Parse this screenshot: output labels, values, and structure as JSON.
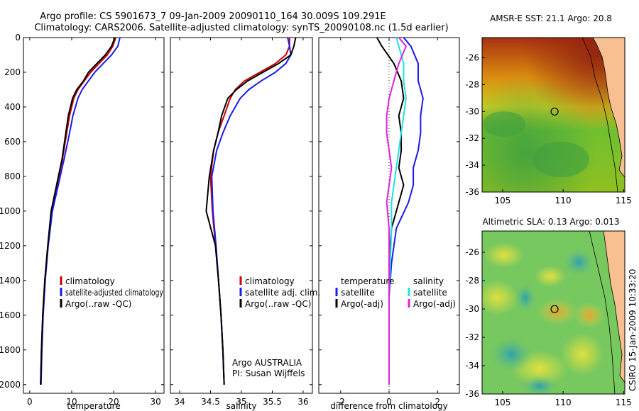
{
  "header": {
    "title_line1": "Argo profile: CS 5901673_7 09-Jan-2009 20090110_164 30.009S 109.291E",
    "title_line2": "Climatology: CARS2006. Satellite-adjusted climatology: synTS_20090108.nc (1.5d earlier)"
  },
  "colors": {
    "climatology": "#cc0000",
    "satellite": "#1a1aee",
    "argo": "#000000",
    "satellite_salinity": "#22e0e0",
    "argo_adj": "#dd22dd"
  },
  "chart_data": [
    {
      "type": "line",
      "id": "temperature",
      "xlabel": "temperature",
      "ylim": [
        2050,
        0
      ],
      "xlim": [
        -1.5,
        32
      ],
      "xticks": [
        0,
        10,
        20,
        30
      ],
      "yticks": [
        0,
        200,
        400,
        600,
        800,
        1000,
        1200,
        1400,
        1600,
        1800,
        2000
      ],
      "legend": [
        "climatology",
        "satellite-adjusted climatology",
        "Argo(..raw -QC)"
      ],
      "series": [
        {
          "name": "climatology",
          "color": "#cc0000",
          "x": [
            20.5,
            19.8,
            18.5,
            16.5,
            14.5,
            13,
            11.5,
            10.5,
            9.5,
            8.8,
            7.8,
            6.5,
            5.2,
            4.3,
            3.6,
            3.1,
            2.8,
            2.6
          ],
          "y": [
            0,
            50,
            100,
            150,
            200,
            250,
            300,
            350,
            450,
            550,
            700,
            850,
            1000,
            1200,
            1400,
            1600,
            1800,
            2000
          ]
        },
        {
          "name": "satellite-adjusted climatology",
          "color": "#1a1aee",
          "x": [
            21.5,
            21,
            19.5,
            17.5,
            15.5,
            14,
            12.5,
            11.5,
            10.3,
            9.5,
            8.2,
            6.8,
            5.4,
            4.4,
            3.7,
            3.2,
            2.9,
            2.7
          ],
          "y": [
            0,
            50,
            100,
            150,
            200,
            250,
            300,
            350,
            450,
            550,
            700,
            850,
            1000,
            1200,
            1400,
            1600,
            1800,
            2000
          ]
        },
        {
          "name": "Argo(..raw -QC)",
          "color": "#000000",
          "x": [
            20.3,
            19.5,
            18,
            16,
            14,
            12.8,
            11.2,
            10.2,
            9.2,
            8.6,
            7.7,
            6.4,
            5.1,
            4.3,
            3.6,
            3.1,
            2.8,
            2.6
          ],
          "y": [
            0,
            50,
            100,
            150,
            200,
            250,
            300,
            350,
            450,
            550,
            700,
            850,
            1000,
            1200,
            1400,
            1600,
            1800,
            2000
          ]
        }
      ]
    },
    {
      "type": "line",
      "id": "salinity",
      "xlabel": "salinity",
      "ylim": [
        2050,
        0
      ],
      "xlim": [
        33.85,
        36.15
      ],
      "xticks": [
        34,
        34.5,
        35,
        35.5,
        36
      ],
      "yticks": [
        0,
        200,
        400,
        600,
        800,
        1000,
        1200,
        1400,
        1600,
        1800,
        2000
      ],
      "legend": [
        "climatology",
        "satellite adj. clim.",
        "Argo(..raw -QC)"
      ],
      "annotation_line1": "Argo AUSTRALIA",
      "annotation_line2": "PI: Susan Wijffels",
      "series": [
        {
          "name": "climatology",
          "color": "#cc0000",
          "x": [
            35.78,
            35.78,
            35.72,
            35.55,
            35.3,
            35.05,
            34.9,
            34.82,
            34.72,
            34.62,
            34.55,
            34.5,
            34.53,
            34.58,
            34.63,
            34.67,
            34.7,
            34.72
          ],
          "y": [
            0,
            50,
            100,
            150,
            200,
            250,
            300,
            350,
            450,
            550,
            650,
            800,
            1000,
            1200,
            1400,
            1600,
            1800,
            2000
          ]
        },
        {
          "name": "satellite adj. clim.",
          "color": "#1a1aee",
          "x": [
            35.75,
            35.78,
            35.8,
            35.72,
            35.55,
            35.32,
            35.12,
            34.98,
            34.82,
            34.7,
            34.6,
            34.52,
            34.54,
            34.59,
            34.63,
            34.67,
            34.7,
            34.72
          ],
          "y": [
            0,
            50,
            100,
            150,
            200,
            250,
            300,
            350,
            450,
            550,
            650,
            800,
            1000,
            1200,
            1400,
            1600,
            1800,
            2000
          ]
        },
        {
          "name": "Argo(..raw -QC)",
          "color": "#000000",
          "x": [
            35.88,
            35.85,
            35.8,
            35.6,
            35.35,
            35.1,
            34.92,
            34.78,
            34.68,
            34.62,
            34.55,
            34.48,
            34.43,
            34.58,
            34.63,
            34.67,
            34.7,
            34.72
          ],
          "y": [
            0,
            50,
            100,
            150,
            200,
            250,
            300,
            350,
            450,
            550,
            650,
            800,
            1000,
            1200,
            1400,
            1600,
            1800,
            2000
          ]
        }
      ]
    },
    {
      "type": "line",
      "id": "difference",
      "xlabel": "difference from climatology",
      "ylim": [
        2050,
        0
      ],
      "xlim": [
        -2.9,
        2.9
      ],
      "xticks": [
        -2,
        0,
        2
      ],
      "yticks": [
        0,
        200,
        400,
        600,
        800,
        1000,
        1200,
        1400,
        1600,
        1800,
        2000
      ],
      "legend_col1_title": "temperature",
      "legend_col2_title": "salinity",
      "legend": [
        "satellite",
        "Argo(-adj)",
        "satellite",
        "Argo(-adj)"
      ],
      "series": [
        {
          "name": "temperature satellite",
          "color": "#1a1aee",
          "x": [
            0.6,
            0.9,
            1.2,
            1.2,
            1.4,
            1.3,
            1.3,
            1.2,
            1.0,
            1.0,
            0.8,
            0.3,
            0.1,
            0,
            0,
            0
          ],
          "y": [
            0,
            50,
            150,
            250,
            350,
            450,
            550,
            650,
            750,
            850,
            950,
            1100,
            1300,
            1500,
            1800,
            2000
          ]
        },
        {
          "name": "temperature Argo(-adj)",
          "color": "#000000",
          "x": [
            -0.5,
            -0.3,
            0.2,
            0.5,
            0.6,
            0.4,
            0.5,
            0.5,
            0.4,
            0.6,
            0.4,
            0.1,
            0.0,
            0,
            0,
            0
          ],
          "y": [
            0,
            50,
            150,
            250,
            350,
            450,
            550,
            650,
            750,
            850,
            950,
            1100,
            1300,
            1500,
            1800,
            2000
          ]
        },
        {
          "name": "salinity satellite",
          "color": "#22e0e0",
          "x": [
            0.3,
            0.4,
            0.6,
            0.6,
            0.7,
            0.6,
            0.5,
            0.4,
            0.3,
            0.2,
            0.1,
            0.1,
            0.05,
            0,
            0,
            0
          ],
          "y": [
            0,
            50,
            150,
            250,
            350,
            450,
            550,
            650,
            750,
            850,
            950,
            1100,
            1300,
            1500,
            1800,
            2000
          ]
        },
        {
          "name": "salinity Argo(-adj)",
          "color": "#dd22dd",
          "x": [
            0.4,
            0.7,
            0.4,
            0.2,
            0,
            -0.1,
            -0.1,
            0,
            0.1,
            0,
            -0.1,
            0,
            0,
            0,
            0,
            0
          ],
          "y": [
            0,
            50,
            150,
            250,
            350,
            450,
            550,
            650,
            750,
            850,
            950,
            1100,
            1300,
            1500,
            1800,
            2000
          ]
        }
      ]
    },
    {
      "type": "heatmap",
      "id": "sst_map",
      "title": "AMSR-E SST: 21.1 Argo: 20.8",
      "xlim": [
        103.3,
        115.1
      ],
      "ylim": [
        -36,
        -24.5
      ],
      "xticks": [
        105,
        110,
        115
      ],
      "yticks": [
        -26,
        -28,
        -30,
        -32,
        -34,
        -36
      ],
      "marker": {
        "lon": 109.291,
        "lat": -30.009
      }
    },
    {
      "type": "heatmap",
      "id": "sla_map",
      "title": "Altimetric SLA: 0.13 Argo: 0.013",
      "xlim": [
        103.3,
        115.1
      ],
      "ylim": [
        -36,
        -24.5
      ],
      "xticks": [
        105,
        110,
        115
      ],
      "yticks": [
        -26,
        -28,
        -30,
        -32,
        -34,
        -36
      ],
      "marker": {
        "lon": 109.291,
        "lat": -30.009
      }
    }
  ],
  "footer": {
    "credit": "CSIRO 15-Jan-2009 10:33:20"
  }
}
